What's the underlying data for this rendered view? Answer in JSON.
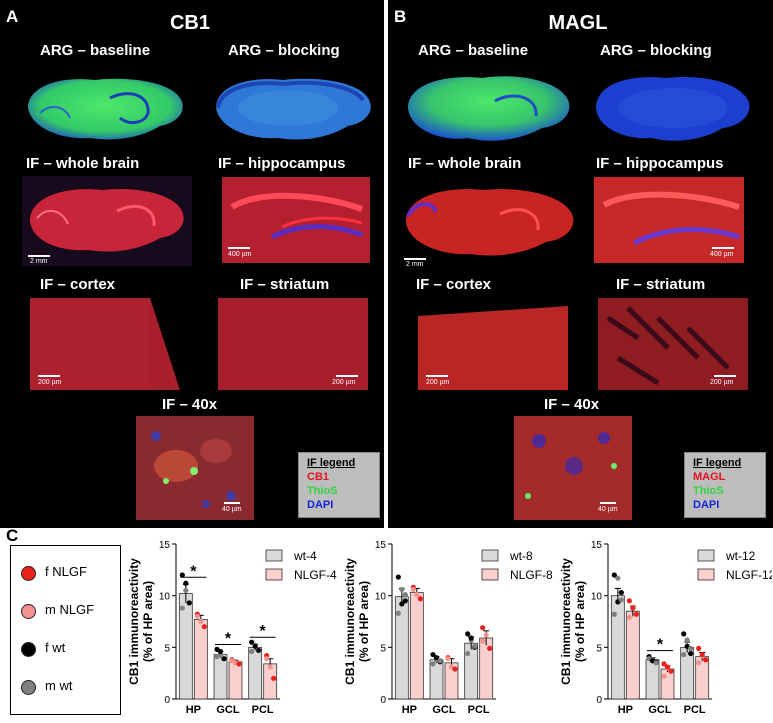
{
  "panel_a": {
    "letter": "A",
    "title": "CB1",
    "labels": {
      "arg_baseline": "ARG – baseline",
      "arg_blocking": "ARG – blocking",
      "if_whole": "IF – whole brain",
      "if_hippo": "IF – hippocampus",
      "if_cortex": "IF – cortex",
      "if_striatum": "IF – striatum",
      "if_40x": "IF – 40x"
    },
    "scalebars": {
      "whole": "2 mm",
      "hippo": "400 µm",
      "cortex": "200 µm",
      "striatum": "200 µm",
      "x40": "40 µm"
    },
    "legend": {
      "heading": "IF legend",
      "marker": "CB1",
      "thios": "ThioS",
      "dapi": "DAPI"
    }
  },
  "panel_b": {
    "letter": "B",
    "title": "MAGL",
    "labels": {
      "arg_baseline": "ARG – baseline",
      "arg_blocking": "ARG – blocking",
      "if_whole": "IF – whole brain",
      "if_hippo": "IF – hippocampus",
      "if_cortex": "IF – cortex",
      "if_striatum": "IF – striatum",
      "if_40x": "IF – 40x"
    },
    "scalebars": {
      "whole": "2 mm",
      "hippo": "400 µm",
      "cortex": "200 µm",
      "striatum": "200 µm",
      "x40": "40 µm"
    },
    "legend": {
      "heading": "IF legend",
      "marker": "MAGL",
      "thios": "ThioS",
      "dapi": "DAPI"
    }
  },
  "panel_c": {
    "letter": "C",
    "legend": [
      {
        "label": "f NLGF",
        "color": "#e8211d"
      },
      {
        "label": "m NLGF",
        "color": "#f4938f"
      },
      {
        "label": "f wt",
        "color": "#000000"
      },
      {
        "label": "m wt",
        "color": "#7f7f7f"
      }
    ]
  },
  "chart_data": [
    {
      "type": "bar",
      "ylabel": "CB1 immunoreactivity\n(% of HP area)",
      "ylim": [
        0,
        15
      ],
      "yticks": [
        0,
        5,
        10,
        15
      ],
      "categories": [
        "HP",
        "GCL",
        "PCL"
      ],
      "series": [
        {
          "name": "wt-4",
          "color": "#d9d9d9",
          "values": [
            10.2,
            4.3,
            5.0
          ],
          "errors": [
            0.9,
            0.3,
            0.3
          ],
          "points": [
            [
              12.0,
              10.5,
              9.3,
              8.8,
              11.2
            ],
            [
              4.8,
              4.3,
              3.9,
              4.1,
              4.6
            ],
            [
              5.5,
              5.2,
              4.7,
              4.6,
              5.1
            ]
          ]
        },
        {
          "name": "NLGF-4",
          "color": "#f9d0ce",
          "values": [
            7.7,
            3.6,
            3.4
          ],
          "errors": [
            0.4,
            0.15,
            0.5
          ],
          "points": [
            [
              8.2,
              7.5,
              7.0,
              8.0
            ],
            [
              3.8,
              3.5,
              3.4,
              3.7
            ],
            [
              4.2,
              3.1,
              2.0,
              3.9
            ]
          ]
        }
      ],
      "significance": [
        "*",
        "*",
        "*"
      ]
    },
    {
      "type": "bar",
      "ylabel": "CB1 immunoreactivity\n(% of HP area)",
      "ylim": [
        0,
        15
      ],
      "yticks": [
        0,
        5,
        10,
        15
      ],
      "categories": [
        "HP",
        "GCL",
        "PCL"
      ],
      "series": [
        {
          "name": "wt-8",
          "color": "#d9d9d9",
          "values": [
            9.9,
            3.8,
            5.4
          ],
          "errors": [
            0.8,
            0.3,
            0.6
          ],
          "points": [
            [
              11.8,
              10.6,
              9.5,
              8.3,
              9.2,
              10.1
            ],
            [
              4.3,
              3.8,
              3.6,
              3.4,
              4.0,
              3.7
            ],
            [
              6.3,
              5.7,
              5.0,
              4.4,
              5.9,
              5.1
            ]
          ]
        },
        {
          "name": "NLGF-8",
          "color": "#f9d0ce",
          "values": [
            10.3,
            3.5,
            5.9
          ],
          "errors": [
            0.4,
            0.4,
            0.7
          ],
          "points": [
            [
              10.8,
              10.1,
              9.7,
              10.6
            ],
            [
              4.0,
              3.1,
              2.9,
              3.9
            ],
            [
              6.9,
              6.2,
              4.9,
              5.6
            ]
          ]
        }
      ],
      "significance": [
        "",
        "",
        ""
      ]
    },
    {
      "type": "bar",
      "ylabel": "CB1 immunoreactivity\n(% of HP area)",
      "ylim": [
        0,
        15
      ],
      "yticks": [
        0,
        5,
        10,
        15
      ],
      "categories": [
        "HP",
        "GCL",
        "PCL"
      ],
      "series": [
        {
          "name": "wt-12",
          "color": "#d9d9d9",
          "values": [
            10.0,
            3.8,
            5.0
          ],
          "errors": [
            0.7,
            0.2,
            0.5
          ],
          "points": [
            [
              12.0,
              11.7,
              10.3,
              8.2,
              9.4,
              9.6
            ],
            [
              4.1,
              3.8,
              3.6,
              3.9,
              3.7,
              3.5
            ],
            [
              6.3,
              5.7,
              4.4,
              4.3,
              5.1,
              4.9
            ]
          ]
        },
        {
          "name": "NLGF-12",
          "color": "#f9d0ce",
          "values": [
            8.5,
            2.9,
            4.1
          ],
          "errors": [
            0.5,
            0.3,
            0.4
          ],
          "points": [
            [
              9.5,
              8.9,
              8.2,
              7.9,
              8.8
            ],
            [
              3.4,
              3.0,
              2.7,
              2.2,
              3.1
            ],
            [
              4.9,
              4.2,
              3.8,
              3.5,
              4.3
            ]
          ]
        }
      ],
      "significance": [
        "",
        "*",
        ""
      ]
    }
  ]
}
